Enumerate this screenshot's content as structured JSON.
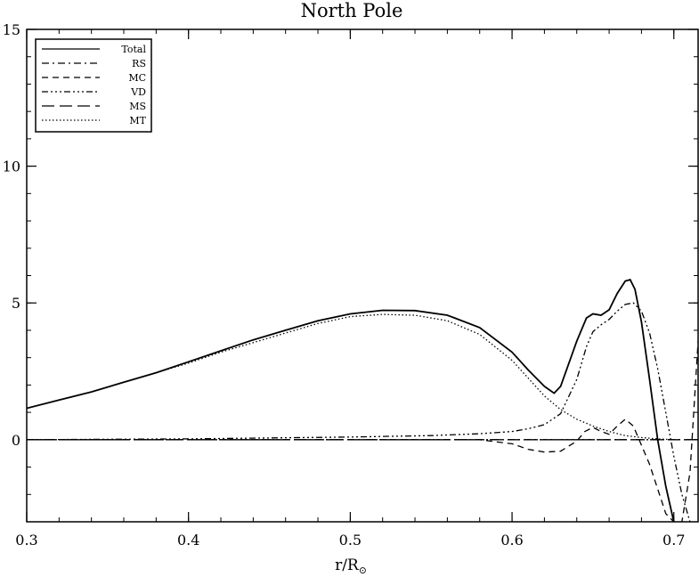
{
  "chart_data": {
    "type": "line",
    "title": "North Pole",
    "xlabel_main": "r/R",
    "xlabel_sub": "⊙",
    "xlim": [
      0.3,
      0.715
    ],
    "ylim": [
      -3,
      15
    ],
    "x_ticks": [
      0.3,
      0.4,
      0.5,
      0.6,
      0.7
    ],
    "x_tick_labels": [
      "0.3",
      "0.4",
      "0.5",
      "0.6",
      "0.7"
    ],
    "y_ticks": [
      0,
      5,
      10,
      15
    ],
    "y_tick_labels": [
      "0",
      "5",
      "10",
      "15"
    ],
    "legend_position": "top-left",
    "series": [
      {
        "name": "Total",
        "dash": "",
        "x": [
          0.3,
          0.32,
          0.34,
          0.36,
          0.38,
          0.4,
          0.42,
          0.44,
          0.46,
          0.48,
          0.5,
          0.52,
          0.54,
          0.56,
          0.58,
          0.6,
          0.61,
          0.62,
          0.626,
          0.63,
          0.64,
          0.646,
          0.65,
          0.655,
          0.66,
          0.665,
          0.67,
          0.673,
          0.676,
          0.68,
          0.685,
          0.69,
          0.695,
          0.7
        ],
        "y": [
          1.15,
          1.45,
          1.75,
          2.1,
          2.45,
          2.85,
          3.25,
          3.65,
          4.0,
          4.35,
          4.6,
          4.73,
          4.72,
          4.55,
          4.1,
          3.2,
          2.55,
          1.95,
          1.7,
          1.95,
          3.6,
          4.45,
          4.6,
          4.55,
          4.75,
          5.35,
          5.8,
          5.85,
          5.5,
          4.3,
          2.2,
          0.0,
          -1.7,
          -3.0
        ]
      },
      {
        "name": "RS",
        "dash": "8,4,2,4",
        "x": [
          0.3,
          0.35,
          0.4,
          0.45,
          0.5,
          0.55,
          0.6,
          0.65,
          0.7,
          0.715
        ],
        "y": [
          0,
          0,
          0,
          0,
          0,
          0,
          0,
          0,
          0,
          0
        ]
      },
      {
        "name": "MC",
        "dash": "7,5",
        "x": [
          0.3,
          0.4,
          0.5,
          0.55,
          0.58,
          0.6,
          0.61,
          0.62,
          0.63,
          0.64,
          0.645,
          0.65,
          0.655,
          0.66,
          0.665,
          0.67,
          0.675,
          0.68,
          0.685,
          0.69,
          0.695,
          0.7,
          0.705,
          0.71,
          0.715
        ],
        "y": [
          0,
          0,
          0,
          0,
          0,
          -0.15,
          -0.35,
          -0.45,
          -0.42,
          -0.05,
          0.3,
          0.45,
          0.3,
          0.2,
          0.5,
          0.75,
          0.5,
          -0.2,
          -0.9,
          -1.8,
          -2.7,
          -3.0,
          -3.0,
          -1.2,
          3.6
        ]
      },
      {
        "name": "VD",
        "dash": "7,3,2,3,2,3,2,3",
        "x": [
          0.3,
          0.4,
          0.5,
          0.55,
          0.58,
          0.6,
          0.61,
          0.62,
          0.63,
          0.64,
          0.646,
          0.65,
          0.655,
          0.66,
          0.665,
          0.67,
          0.675,
          0.68,
          0.685,
          0.69,
          0.695,
          0.7,
          0.705,
          0.71
        ],
        "y": [
          0,
          0.03,
          0.1,
          0.15,
          0.22,
          0.3,
          0.4,
          0.55,
          0.95,
          2.2,
          3.4,
          3.95,
          4.2,
          4.4,
          4.7,
          4.95,
          5.0,
          4.7,
          3.9,
          2.6,
          1.0,
          -0.6,
          -2.0,
          -3.0
        ]
      },
      {
        "name": "MS",
        "dash": "14,6",
        "x": [
          0.3,
          0.35,
          0.4,
          0.45,
          0.5,
          0.55,
          0.6,
          0.65,
          0.7,
          0.715
        ],
        "y": [
          0,
          0,
          0,
          0,
          0,
          0,
          0,
          0,
          0,
          0
        ]
      },
      {
        "name": "MT",
        "dash": "1.5,2.5",
        "x": [
          0.3,
          0.32,
          0.34,
          0.36,
          0.38,
          0.4,
          0.42,
          0.44,
          0.46,
          0.48,
          0.5,
          0.52,
          0.54,
          0.56,
          0.58,
          0.6,
          0.61,
          0.62,
          0.63,
          0.64,
          0.65,
          0.66,
          0.67,
          0.68,
          0.69,
          0.7
        ],
        "y": [
          1.15,
          1.45,
          1.75,
          2.1,
          2.45,
          2.8,
          3.2,
          3.55,
          3.9,
          4.25,
          4.5,
          4.58,
          4.55,
          4.35,
          3.85,
          2.9,
          2.25,
          1.6,
          1.1,
          0.75,
          0.5,
          0.3,
          0.15,
          0.08,
          0.03,
          0.0
        ]
      }
    ]
  }
}
